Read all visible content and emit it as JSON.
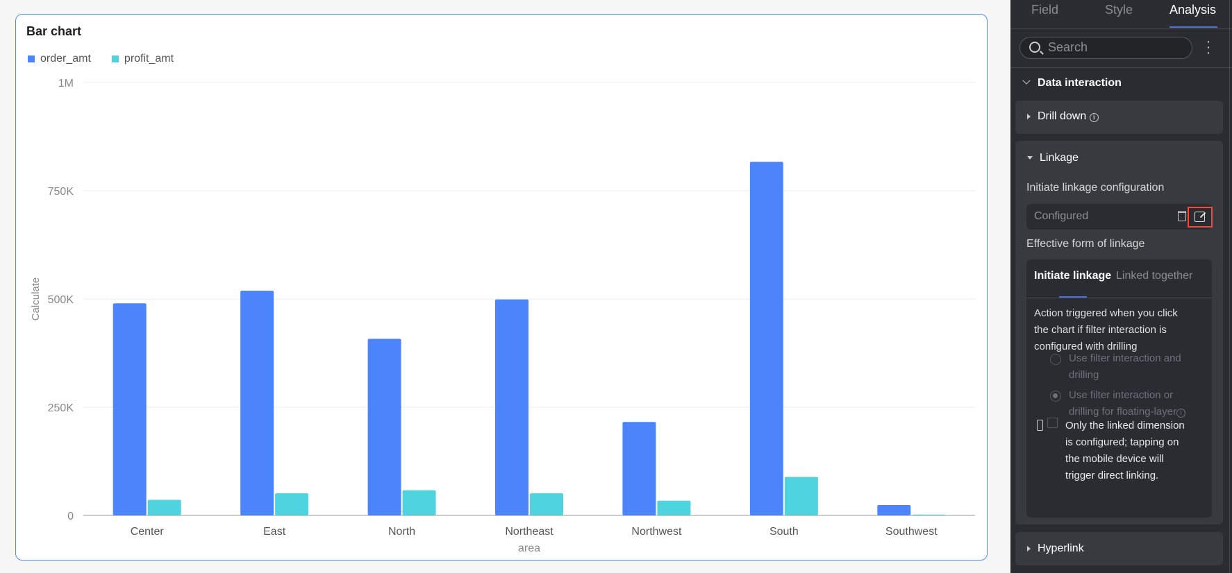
{
  "chart_data": {
    "type": "bar",
    "title": "Bar chart",
    "xlabel": "area",
    "ylabel": "Calculate",
    "ylim": [
      0,
      1000000
    ],
    "yticks": [
      {
        "v": 0,
        "label": "0"
      },
      {
        "v": 250000,
        "label": "250K"
      },
      {
        "v": 500000,
        "label": "500K"
      },
      {
        "v": 750000,
        "label": "750K"
      },
      {
        "v": 1000000,
        "label": "1M"
      }
    ],
    "grid": true,
    "legend": "top-left",
    "categories": [
      "Center",
      "East",
      "North",
      "Northeast",
      "Northwest",
      "South",
      "Southwest"
    ],
    "series": [
      {
        "name": "order_amt",
        "color": "#4c85fb",
        "values": [
          490000,
          519000,
          408000,
          499000,
          216000,
          817000,
          24000
        ]
      },
      {
        "name": "profit_amt",
        "color": "#4fd3de",
        "values": [
          36000,
          51000,
          58000,
          51000,
          34000,
          89000,
          2000
        ]
      }
    ]
  },
  "panel": {
    "tabs": [
      "Field",
      "Style",
      "Analysis"
    ],
    "active_tab": "Analysis",
    "search_placeholder": "Search",
    "section": "Data interaction",
    "drill_down": "Drill down",
    "linkage": "Linkage",
    "config_label": "Initiate linkage configuration",
    "config_value": "Configured",
    "effective_label": "Effective form of linkage",
    "inner_tabs": [
      "Initiate linkage",
      "Linked together"
    ],
    "description": [
      "Action triggered when you click",
      "the chart if filter interaction is",
      "configured with drilling"
    ],
    "radio1": [
      "Use filter interaction and",
      "drilling"
    ],
    "radio2": [
      "Use filter interaction or",
      "drilling for floating-layer"
    ],
    "radio_selected": 2,
    "checkbox_text": [
      "Only the linked dimension",
      "is configured; tapping on",
      "the mobile device will",
      "trigger direct linking."
    ],
    "checkbox_checked": false,
    "hyperlink": "Hyperlink"
  }
}
